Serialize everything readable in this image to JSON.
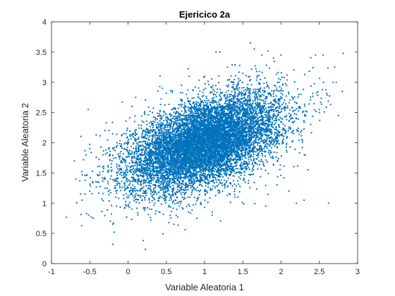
{
  "chart_data": {
    "type": "scatter",
    "title": "Ejericico 2a",
    "xlabel": "Variable Aleatoria 1",
    "ylabel": "Variable Aleatoria 2",
    "xlim": [
      -1,
      3
    ],
    "ylim": [
      0,
      4
    ],
    "xticks": [
      "-1",
      "-0.5",
      "0",
      "0.5",
      "1",
      "1.5",
      "2",
      "2.5",
      "3"
    ],
    "yticks": [
      "0",
      "0.5",
      "1",
      "1.5",
      "2",
      "2.5",
      "3",
      "3.5",
      "4"
    ],
    "grid": false,
    "box": true,
    "marker_color": "#0072BD",
    "marker": "filled-dot",
    "series": [
      {
        "x": [
          -0.7,
          -0.68,
          -0.62,
          -0.6,
          -0.55,
          -0.52,
          -0.5,
          -0.4,
          -0.2,
          -0.18,
          -0.2,
          -0.15,
          0.05,
          0.2,
          0.3,
          0.6,
          0.9,
          1.1,
          1.2,
          1.5,
          1.6,
          1.65,
          1.75,
          1.9,
          2.0,
          2.2,
          2.3,
          2.45,
          2.5,
          2.55,
          2.62,
          2.68,
          2.7,
          2.72,
          2.75,
          2.8,
          1.15,
          0.05,
          0.1,
          -0.3,
          0.45,
          0.8,
          1.3,
          1.8,
          2.1,
          0.35,
          0.55,
          0.7,
          1.0,
          1.4
        ],
        "y": [
          1.7,
          1.4,
          1.15,
          1.05,
          1.8,
          2.55,
          1.2,
          1.35,
          0.32,
          0.52,
          0.65,
          0.95,
          0.9,
          0.38,
          0.72,
          0.65,
          0.75,
          0.8,
          3.5,
          3.15,
          3.65,
          3.55,
          3.45,
          3.4,
          3.45,
          1.0,
          1.05,
          3.45,
          2.5,
          3.45,
          1.0,
          3.0,
          3.25,
          3.0,
          2.45,
          2.85,
          3.5,
          2.6,
          2.75,
          2.2,
          2.9,
          3.1,
          3.25,
          0.95,
          1.2,
          1.0,
          0.8,
          2.95,
          3.1,
          1.1
        ]
      }
    ],
    "core_distribution": {
      "count": 10000,
      "mean_x": 1.0,
      "mean_y": 2.0,
      "std_x": 0.5,
      "std_y": 0.4,
      "correlation": 0.5
    }
  }
}
